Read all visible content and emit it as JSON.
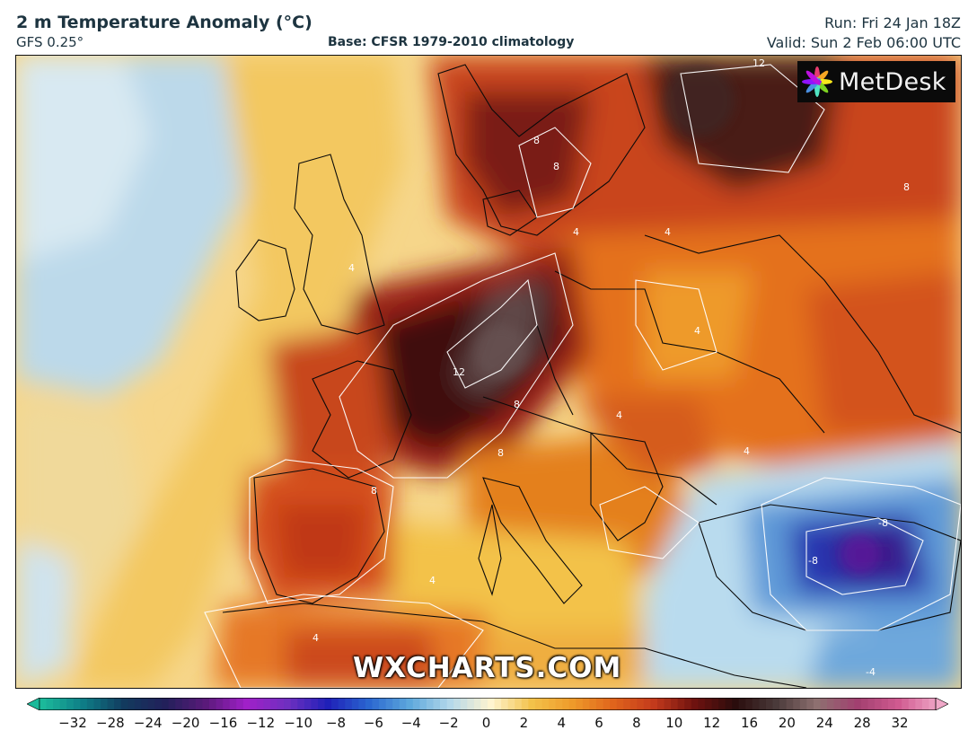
{
  "header": {
    "title": "2 m Temperature Anomaly (°C)",
    "model": "GFS 0.25°",
    "base": "Base: CFSR 1979-2010 climatology",
    "run": "Run: Fri 24 Jan 18Z",
    "valid": "Valid: Sun 2 Feb 06:00 UTC"
  },
  "logo": {
    "text": "MetDesk",
    "icon": "flower-logo-icon"
  },
  "watermark": "WXCHARTS.COM",
  "map": {
    "contour_labels": [
      "12",
      "8",
      "8",
      "4",
      "4",
      "12",
      "8",
      "8",
      "4",
      "4",
      "4",
      "8",
      "-8",
      "-8",
      "4",
      "-4",
      "4",
      "4",
      "8"
    ]
  },
  "colorbar": {
    "ticks": [
      "−32",
      "−28",
      "−24",
      "−20",
      "−16",
      "−12",
      "−10",
      "−8",
      "−6",
      "−4",
      "−2",
      "0",
      "2",
      "4",
      "6",
      "8",
      "10",
      "12",
      "16",
      "20",
      "24",
      "28",
      "32"
    ],
    "colors": [
      "#1bb99a",
      "#0e7c86",
      "#123a5e",
      "#22205a",
      "#5a1a7a",
      "#a020c8",
      "#6f2fc0",
      "#1f20b8",
      "#2a66d0",
      "#5da8dc",
      "#b4d8ea",
      "#fff4d0",
      "#f3c24a",
      "#ee9a2a",
      "#e0641c",
      "#c33a1c",
      "#6e120f",
      "#2a0c0c",
      "#4a3a3a",
      "#8e7070",
      "#a24070",
      "#d05a90",
      "#f0a8c8"
    ]
  }
}
